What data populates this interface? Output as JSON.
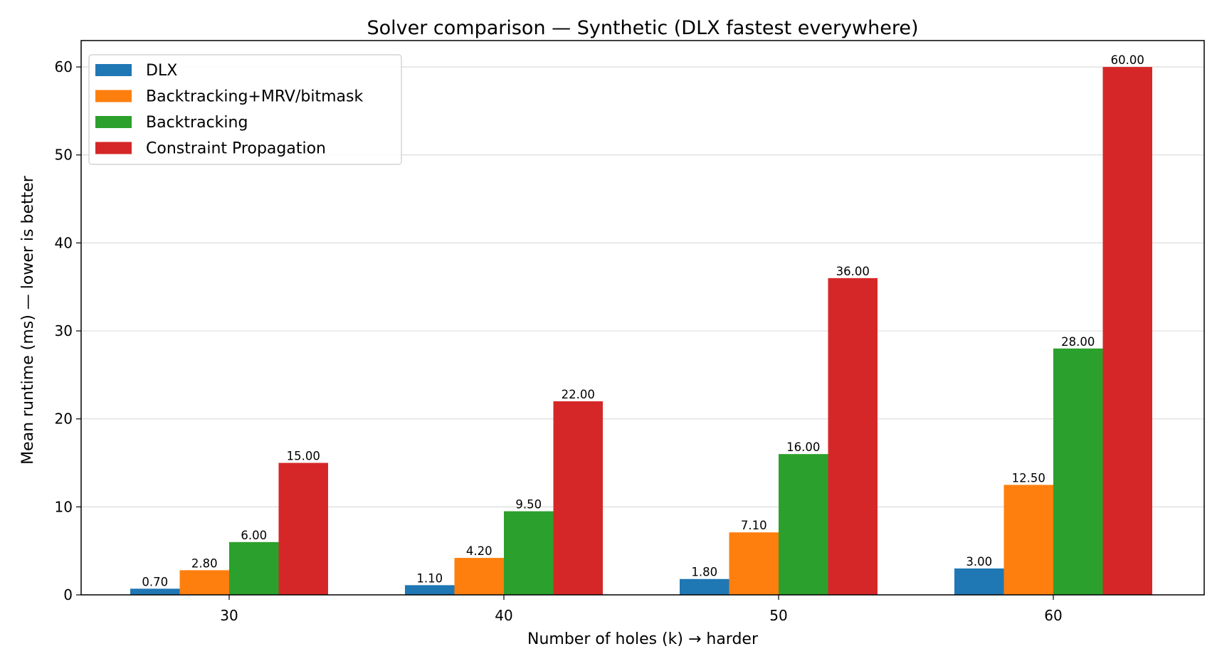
{
  "chart_data": {
    "type": "bar",
    "title": "Solver comparison — Synthetic (DLX fastest everywhere)",
    "xlabel": "Number of holes (k) → harder",
    "ylabel": "Mean runtime (ms) — lower is better",
    "categories": [
      "30",
      "40",
      "50",
      "60"
    ],
    "ylim": [
      0,
      63
    ],
    "yticks": [
      0,
      10,
      20,
      30,
      40,
      50,
      60
    ],
    "grid": "horizontal",
    "legend_position": "top-left",
    "value_label_format": "2 decimals",
    "series": [
      {
        "name": "DLX",
        "color": "#1f77b4",
        "values": [
          0.7,
          1.1,
          1.8,
          3.0
        ]
      },
      {
        "name": "Backtracking+MRV/bitmask",
        "color": "#ff7f0e",
        "values": [
          2.8,
          4.2,
          7.1,
          12.5
        ]
      },
      {
        "name": "Backtracking",
        "color": "#2ca02c",
        "values": [
          6.0,
          9.5,
          16.0,
          28.0
        ]
      },
      {
        "name": "Constraint Propagation",
        "color": "#d62728",
        "values": [
          15.0,
          22.0,
          36.0,
          60.0
        ]
      }
    ]
  }
}
